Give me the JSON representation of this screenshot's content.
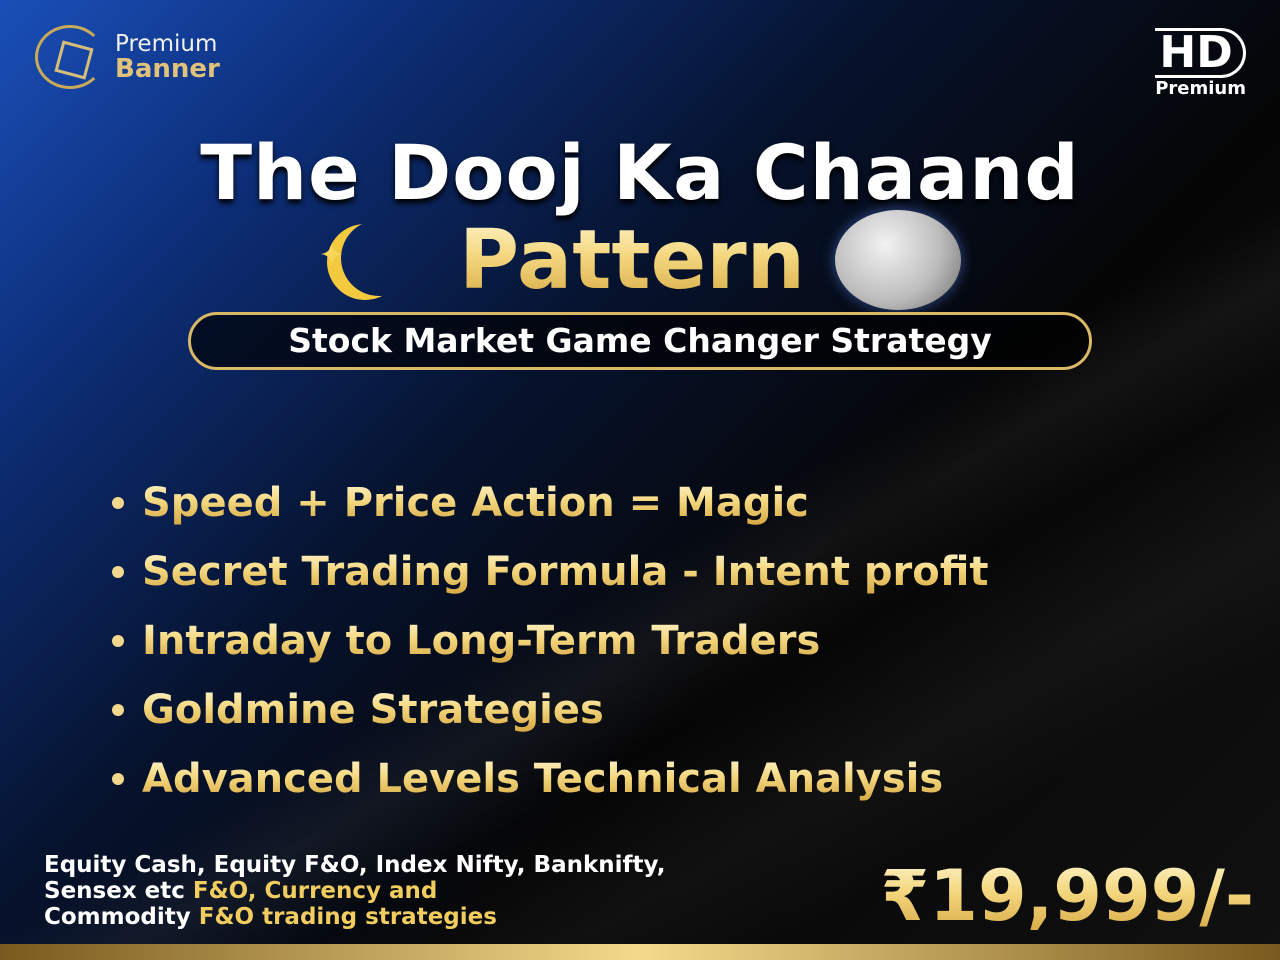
{
  "logo": {
    "line1": "Premium",
    "line2": "Banner"
  },
  "badge": {
    "main": "HD",
    "sub": "Premium"
  },
  "title": {
    "line1": "The Dooj Ka Chaand",
    "line2": "Pattern"
  },
  "subtitle": "Stock Market Game Changer Strategy",
  "bullets": [
    "Speed + Price Action = Magic",
    "Secret Trading Formula - Intent profit",
    "Intraday to Long-Term Traders",
    "Goldmine Strategies",
    "Advanced Levels Technical Analysis"
  ],
  "footer": {
    "part1": "Equity Cash, Equity F&O, Index Nifty, Banknifty,",
    "part2": "Sensex etc ",
    "part3": "F&O, Currency and",
    "part4": "Commodity ",
    "part5": "F&O trading strategies"
  },
  "price": "₹19,999/-",
  "colors": {
    "gold": "#f4d77f",
    "blue": "#1a4fb8"
  }
}
